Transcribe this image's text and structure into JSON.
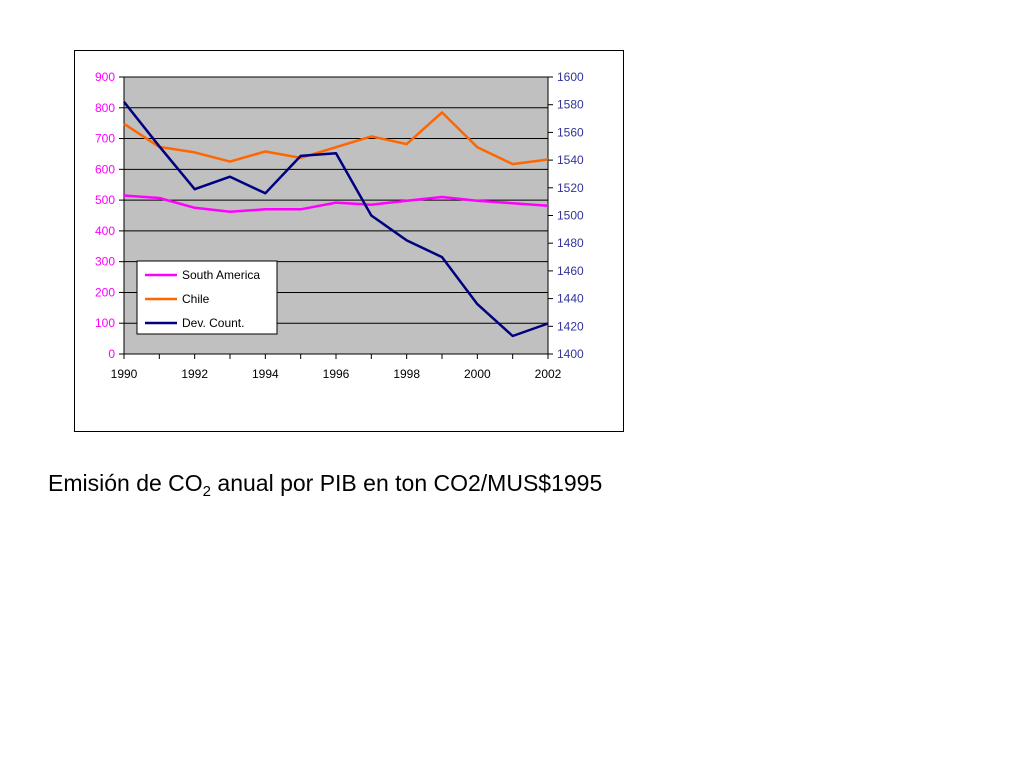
{
  "caption": {
    "before": "Emisión de CO",
    "sub": "2",
    "after": " anual por PIB en ton CO2/MUS$1995"
  },
  "chart_data": {
    "type": "line",
    "title": "",
    "xlabel": "",
    "ylabel": "",
    "plot_background": "#c0c0c0",
    "grid": true,
    "legend_placement": "bottom-left",
    "x": [
      1990,
      1991,
      1992,
      1993,
      1994,
      1995,
      1996,
      1997,
      1998,
      1999,
      2000,
      2001,
      2002
    ],
    "x_ticks": [
      "1990",
      "1992",
      "1994",
      "1996",
      "1998",
      "2000",
      "2002"
    ],
    "xlim": [
      1990,
      2002
    ],
    "y_left": {
      "ylim": [
        0,
        900
      ],
      "ticks": [
        "0",
        "100",
        "200",
        "300",
        "400",
        "500",
        "600",
        "700",
        "800",
        "900"
      ],
      "color": "#ff00ff"
    },
    "y_right": {
      "ylim": [
        1400,
        1600
      ],
      "ticks": [
        "1400",
        "1420",
        "1440",
        "1460",
        "1480",
        "1500",
        "1520",
        "1540",
        "1560",
        "1580",
        "1600"
      ],
      "color": "#333399"
    },
    "series": [
      {
        "name": "South America",
        "axis": "left",
        "color": "#ff00ff",
        "values": [
          515,
          507,
          475,
          462,
          470,
          470,
          492,
          485,
          498,
          510,
          498,
          490,
          482
        ]
      },
      {
        "name": "Chile",
        "axis": "left",
        "color": "#ff6600",
        "values": [
          748,
          673,
          655,
          625,
          658,
          637,
          672,
          707,
          682,
          785,
          672,
          617,
          632
        ]
      },
      {
        "name": "Dev. Count.",
        "axis": "right",
        "color": "#000080",
        "values": [
          1582,
          1550,
          1519,
          1528,
          1516,
          1543,
          1545,
          1500,
          1482,
          1470,
          1436,
          1413,
          1422
        ]
      }
    ]
  }
}
